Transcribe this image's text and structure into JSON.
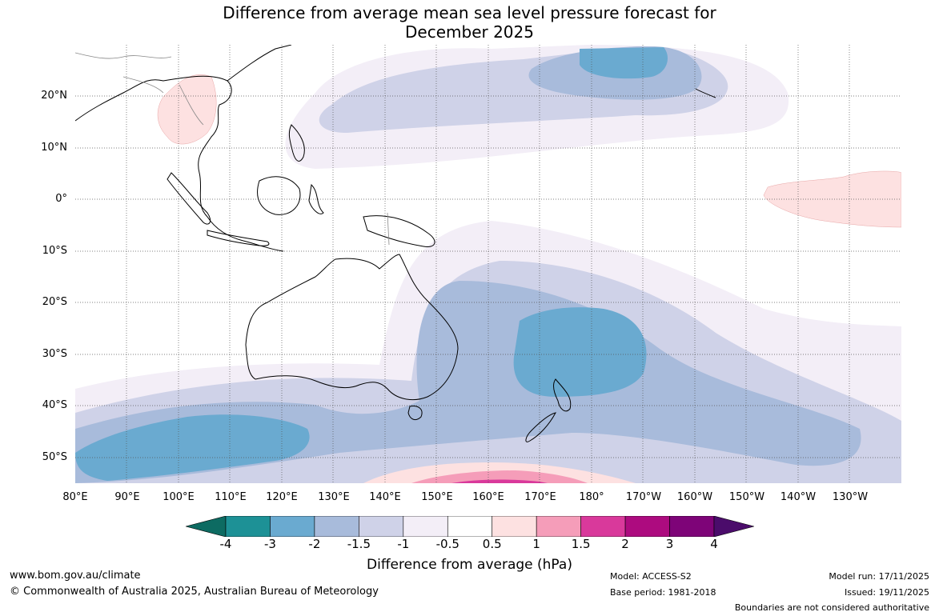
{
  "title": {
    "line1": "Difference from average mean sea level pressure forecast for",
    "line2": "December 2025"
  },
  "map": {
    "lat_labels": [
      "20°N",
      "10°N",
      "0°",
      "10°S",
      "20°S",
      "30°S",
      "40°S",
      "50°S"
    ],
    "lon_labels": [
      "80°E",
      "90°E",
      "100°E",
      "110°E",
      "120°E",
      "130°E",
      "140°E",
      "150°E",
      "160°E",
      "170°E",
      "180°",
      "170°W",
      "160°W",
      "150°W",
      "140°W",
      "130°W"
    ]
  },
  "colorbar": {
    "ticks": [
      "-4",
      "-3",
      "-2",
      "-1.5",
      "-1",
      "-0.5",
      "0.5",
      "1",
      "1.5",
      "2",
      "3",
      "4"
    ],
    "colors": [
      "#1d9196",
      "#6aaad0",
      "#a8bbdb",
      "#cfd2e8",
      "#f3eef7",
      "#ffffff",
      "#fde1e1",
      "#f59db9",
      "#d9399b",
      "#ad0b7f",
      "#7e0478"
    ],
    "under_color": "#0d6b62",
    "over_color": "#4b0c6b",
    "label": "Difference from average (hPa)"
  },
  "footer": {
    "website": "www.bom.gov.au/climate",
    "copyright": "© Commonwealth of Australia 2025, Australian Bureau of Meteorology",
    "model": "Model: ACCESS-S2",
    "base_period": "Base period: 1981-2018",
    "model_run": "Model run: 17/11/2025",
    "issued": "Issued: 19/11/2025",
    "disclaimer": "Boundaries are not considered authoritative"
  }
}
